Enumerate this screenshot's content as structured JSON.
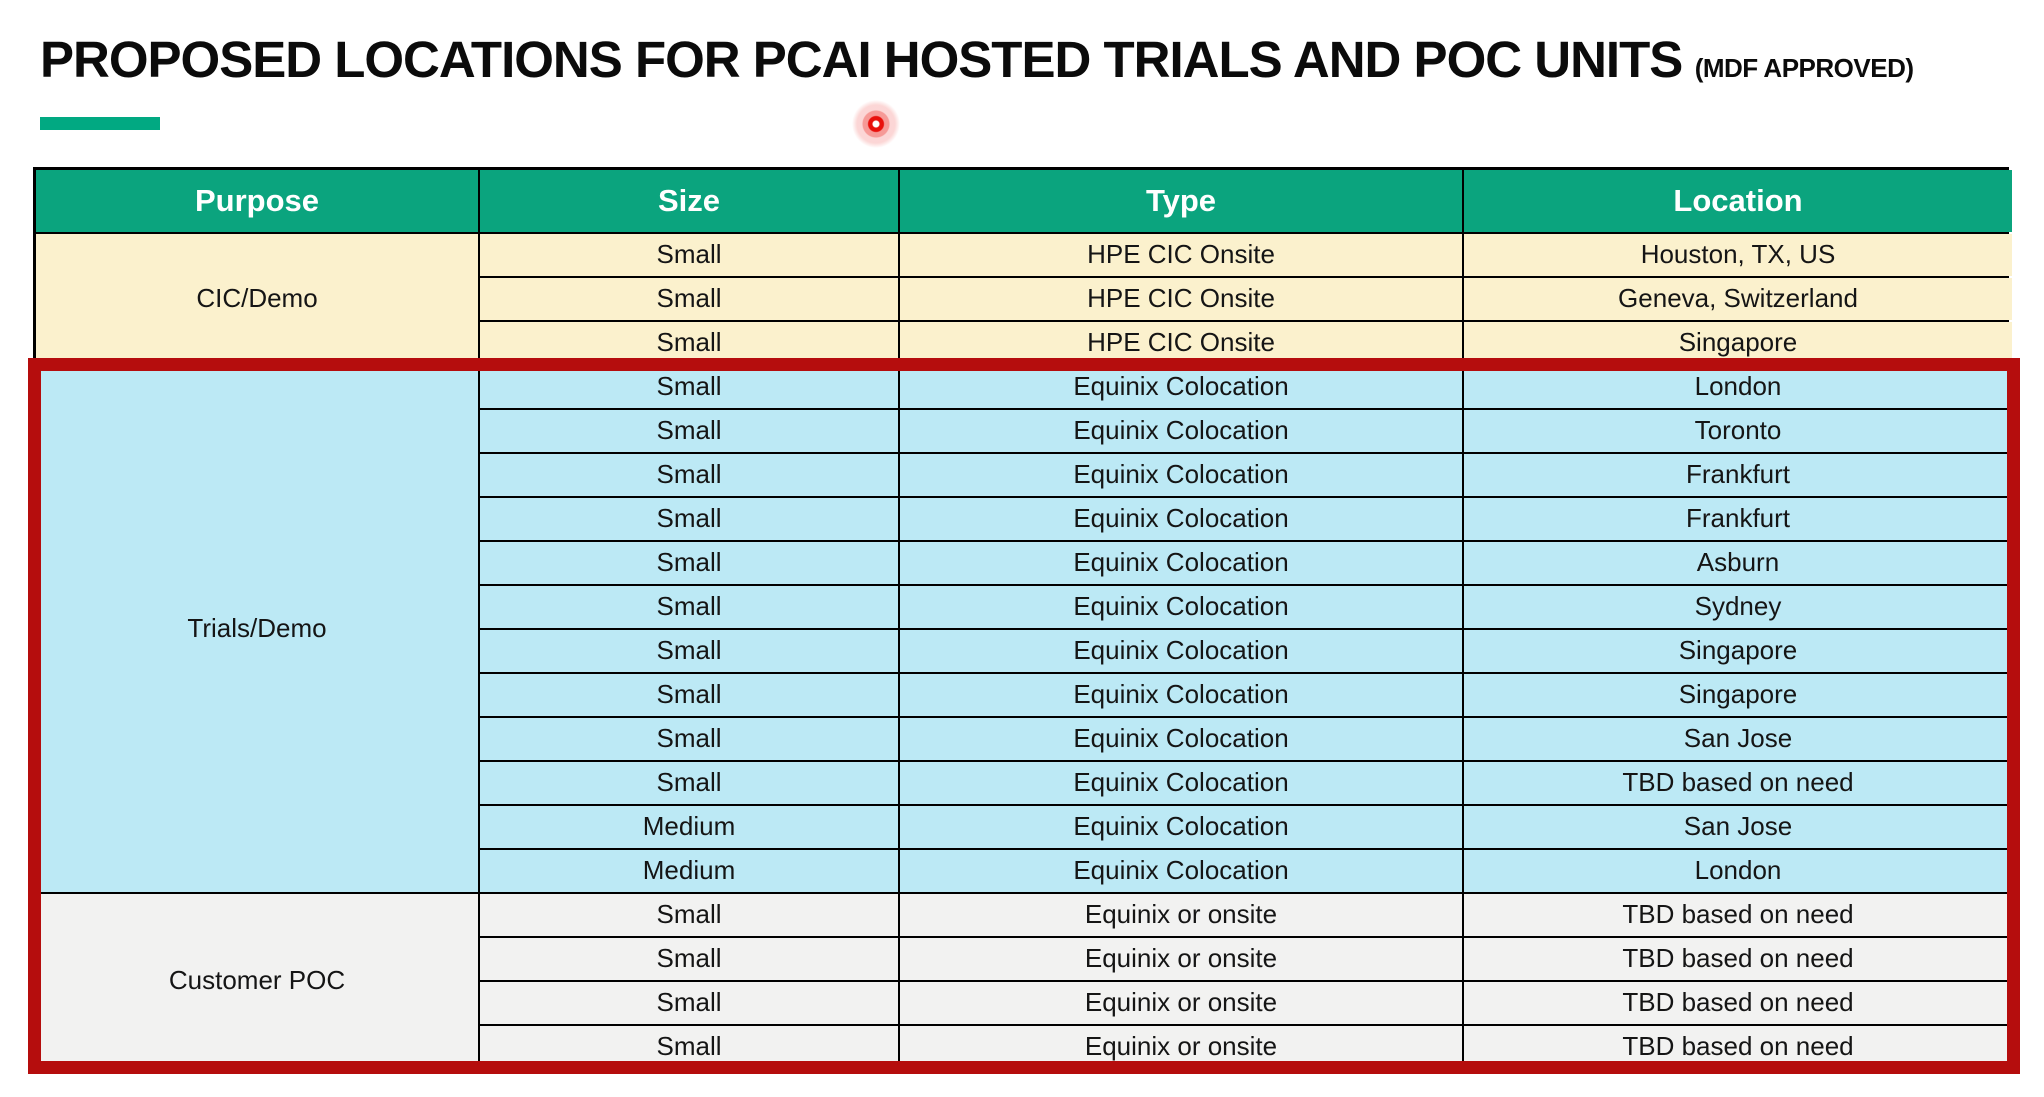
{
  "slide": {
    "title": "PROPOSED LOCATIONS FOR PCAI HOSTED TRIALS AND POC UNITS",
    "title_suffix": "(MDF APPROVED)"
  },
  "table": {
    "columns": [
      "Purpose",
      "Size",
      "Type",
      "Location"
    ],
    "groups": [
      {
        "purpose": "CIC/Demo",
        "style": "cic",
        "highlighted": false,
        "rows": [
          {
            "size": "Small",
            "type": "HPE CIC Onsite",
            "location": "Houston, TX, US"
          },
          {
            "size": "Small",
            "type": "HPE CIC Onsite",
            "location": "Geneva, Switzerland"
          },
          {
            "size": "Small",
            "type": "HPE CIC Onsite",
            "location": "Singapore"
          }
        ]
      },
      {
        "purpose": "Trials/Demo",
        "style": "trials",
        "highlighted": true,
        "rows": [
          {
            "size": "Small",
            "type": "Equinix Colocation",
            "location": "London"
          },
          {
            "size": "Small",
            "type": "Equinix Colocation",
            "location": "Toronto"
          },
          {
            "size": "Small",
            "type": "Equinix Colocation",
            "location": "Frankfurt"
          },
          {
            "size": "Small",
            "type": "Equinix Colocation",
            "location": "Frankfurt"
          },
          {
            "size": "Small",
            "type": "Equinix Colocation",
            "location": "Asburn"
          },
          {
            "size": "Small",
            "type": "Equinix Colocation",
            "location": "Sydney"
          },
          {
            "size": "Small",
            "type": "Equinix Colocation",
            "location": "Singapore"
          },
          {
            "size": "Small",
            "type": "Equinix Colocation",
            "location": "Singapore"
          },
          {
            "size": "Small",
            "type": "Equinix Colocation",
            "location": "San Jose"
          },
          {
            "size": "Small",
            "type": "Equinix Colocation",
            "location": "TBD based on need"
          },
          {
            "size": "Medium",
            "type": "Equinix Colocation",
            "location": "San Jose"
          },
          {
            "size": "Medium",
            "type": "Equinix Colocation",
            "location": "London"
          }
        ]
      },
      {
        "purpose": "Customer POC",
        "style": "poc",
        "highlighted": true,
        "rows": [
          {
            "size": "Small",
            "type": "Equinix or onsite",
            "location": "TBD based on need"
          },
          {
            "size": "Small",
            "type": "Equinix or onsite",
            "location": "TBD based on need"
          },
          {
            "size": "Small",
            "type": "Equinix or onsite",
            "location": "TBD based on need"
          },
          {
            "size": "Small",
            "type": "Equinix or onsite",
            "location": "TBD based on need"
          }
        ]
      }
    ]
  },
  "colors": {
    "header_bg": "#0BA47E",
    "header_text": "#FFFFFF",
    "cic_row_bg": "#FBF1CD",
    "trials_row_bg": "#BCE9F5",
    "poc_row_bg": "#F2F2F1",
    "accent_green": "#01A982",
    "body_text": "#151515",
    "highlight_border": "#B50D0D",
    "laser_pointer": "#E8100C"
  }
}
